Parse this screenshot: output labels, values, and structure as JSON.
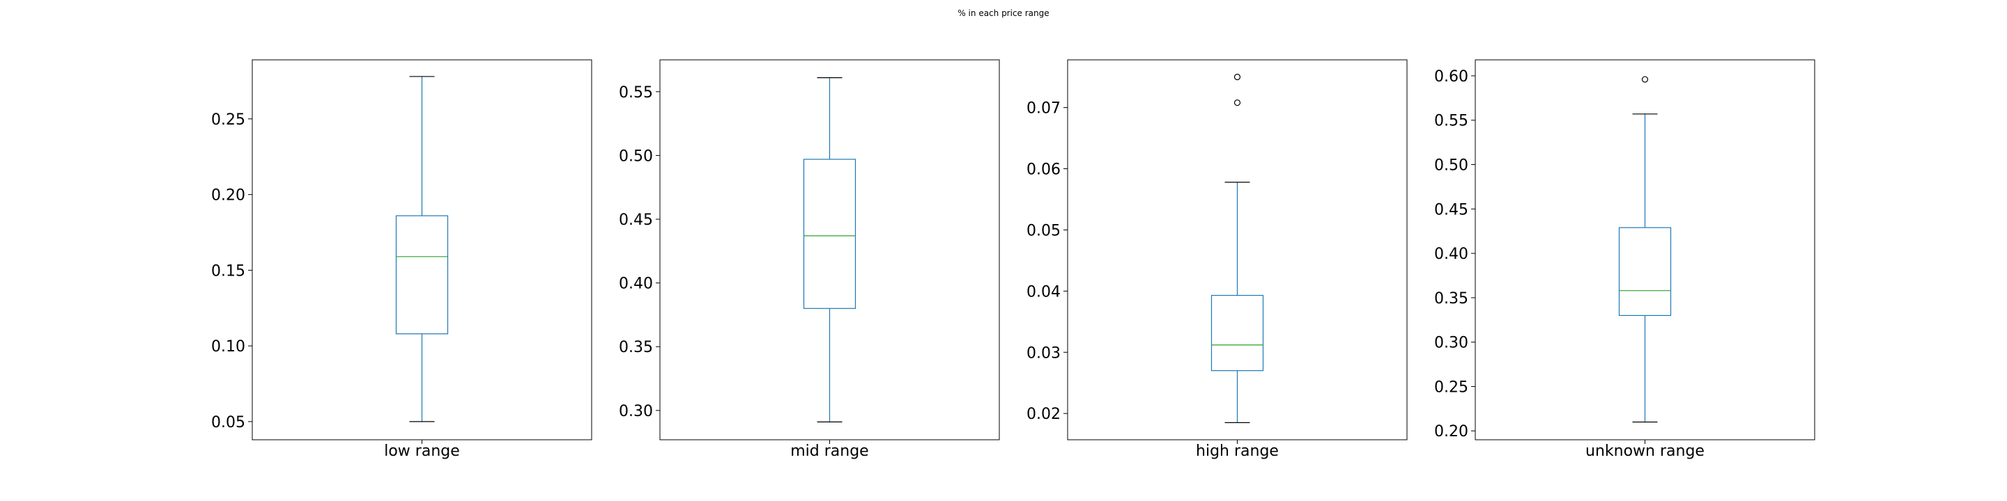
{
  "figure": {
    "suptitle": "% in each price range"
  },
  "colors": {
    "box": "#1f77b4",
    "median": "#2ca02c",
    "cap": "#000000",
    "frame": "#000000",
    "outlier": "#000000"
  },
  "chart_data": [
    {
      "type": "box",
      "categories": [
        "low range"
      ],
      "ylim": [
        0.038,
        0.289
      ],
      "yticks": [
        0.05,
        0.1,
        0.15,
        0.2,
        0.25
      ],
      "ytick_labels": [
        "0.05",
        "0.10",
        "0.15",
        "0.20",
        "0.25"
      ],
      "stats": {
        "whislo": 0.05,
        "q1": 0.108,
        "med": 0.159,
        "q3": 0.186,
        "whishi": 0.278
      },
      "fliers": []
    },
    {
      "type": "box",
      "categories": [
        "mid range"
      ],
      "ylim": [
        0.277,
        0.575
      ],
      "yticks": [
        0.3,
        0.35,
        0.4,
        0.45,
        0.5,
        0.55
      ],
      "ytick_labels": [
        "0.30",
        "0.35",
        "0.40",
        "0.45",
        "0.50",
        "0.55"
      ],
      "stats": {
        "whislo": 0.291,
        "q1": 0.38,
        "med": 0.437,
        "q3": 0.497,
        "whishi": 0.561
      },
      "fliers": []
    },
    {
      "type": "box",
      "categories": [
        "high range"
      ],
      "ylim": [
        0.0157,
        0.0778
      ],
      "yticks": [
        0.02,
        0.03,
        0.04,
        0.05,
        0.06,
        0.07
      ],
      "ytick_labels": [
        "0.02",
        "0.03",
        "0.04",
        "0.05",
        "0.06",
        "0.07"
      ],
      "stats": {
        "whislo": 0.0185,
        "q1": 0.027,
        "med": 0.0312,
        "q3": 0.0393,
        "whishi": 0.0578
      },
      "fliers": [
        0.0708,
        0.075
      ]
    },
    {
      "type": "box",
      "categories": [
        "unknown range"
      ],
      "ylim": [
        0.19,
        0.618
      ],
      "yticks": [
        0.2,
        0.25,
        0.3,
        0.35,
        0.4,
        0.45,
        0.5,
        0.55,
        0.6
      ],
      "ytick_labels": [
        "0.20",
        "0.25",
        "0.30",
        "0.35",
        "0.40",
        "0.45",
        "0.50",
        "0.55",
        "0.60"
      ],
      "stats": {
        "whislo": 0.21,
        "q1": 0.33,
        "med": 0.358,
        "q3": 0.429,
        "whishi": 0.557
      },
      "fliers": [
        0.596
      ]
    }
  ]
}
